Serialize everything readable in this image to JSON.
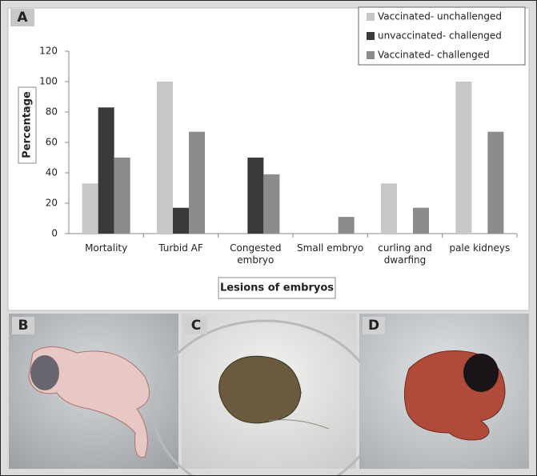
{
  "chart_data": {
    "type": "bar",
    "panel_label": "A",
    "categories": [
      "Mortality",
      "Turbid AF",
      "Congested\nembryo",
      "Small embryo",
      "curling and\ndwarfing",
      "pale kidneys"
    ],
    "series": [
      {
        "name": "Vaccinated- unchallenged",
        "color": "#c8c8c8",
        "values": [
          33,
          100,
          0,
          0,
          33,
          100
        ]
      },
      {
        "name": "unvaccinated- challenged",
        "color": "#3a3a3a",
        "values": [
          83,
          17,
          50,
          0,
          0,
          0
        ]
      },
      {
        "name": "Vaccinated- challenged",
        "color": "#8c8c8c",
        "values": [
          50,
          67,
          39,
          11,
          17,
          67
        ]
      }
    ],
    "x_label": "Lesions of embryos",
    "y_label": "Percentage",
    "ylim": [
      0,
      120
    ],
    "yticks": [
      0,
      20,
      40,
      60,
      80,
      100,
      120
    ],
    "grid": false,
    "legend": "top-right"
  },
  "photo_panels": [
    "B",
    "C",
    "D"
  ]
}
